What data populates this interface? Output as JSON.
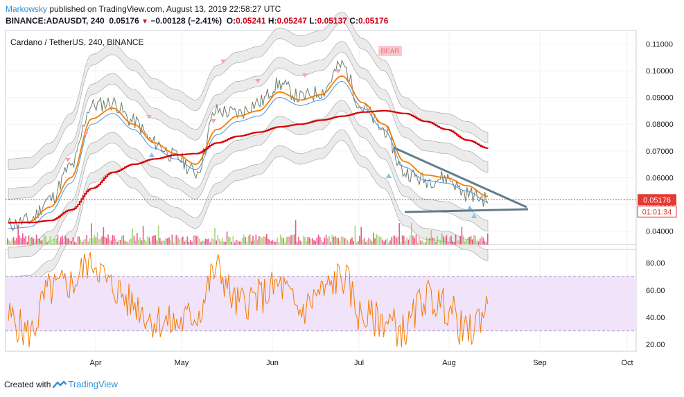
{
  "header": {
    "author": "Markowsky",
    "published_text": " published on TradingView.com, August 13, 2019 22:58:27 UTC",
    "symbol_line": "BINANCE:ADAUSDT, 240",
    "last_price": "0.05176",
    "change": "−0.00128 (−2.41%)",
    "o_label": "O:",
    "o_value": "0.05241",
    "h_label": "H:",
    "h_value": "0.05247",
    "l_label": "L:",
    "l_value": "0.05137",
    "c_label": "C:",
    "c_value": "0.05176",
    "down_arrow": "▼"
  },
  "chart_data": [
    {
      "type": "line",
      "title": "Cardano / TetherUS, 240, BINANCE",
      "price_axis_ticks": [
        "0.11000",
        "0.10000",
        "0.09000",
        "0.08000",
        "0.07000",
        "0.06000",
        "0.05000",
        "0.04000"
      ],
      "x_axis_ticks": [
        "Apr",
        "May",
        "Jun",
        "Jul",
        "Aug",
        "Sep",
        "Oct"
      ],
      "current_price_label": "0.05176",
      "countdown_label": "01:01:34",
      "signal_label": "BEAR",
      "series": [
        {
          "x": [
            "Mar 6",
            "Mar 13",
            "Mar 20",
            "Mar 27",
            "Apr 3",
            "Apr 10",
            "Apr 17",
            "Apr 24",
            "May 1",
            "May 8",
            "May 15",
            "May 22",
            "May 29",
            "Jun 5",
            "Jun 12",
            "Jun 19",
            "Jun 26",
            "Jul 3",
            "Jul 10",
            "Jul 17",
            "Jul 24",
            "Jul 31",
            "Aug 7",
            "Aug 13"
          ],
          "values": [
            0.0425,
            0.044,
            0.052,
            0.064,
            0.087,
            0.088,
            0.081,
            0.073,
            0.068,
            0.062,
            0.085,
            0.084,
            0.088,
            0.095,
            0.09,
            0.092,
            0.102,
            0.086,
            0.078,
            0.062,
            0.059,
            0.06,
            0.054,
            0.0518
          ]
        },
        {
          "values": [
            0.043,
            0.0435,
            0.049,
            0.06,
            0.082,
            0.086,
            0.08,
            0.073,
            0.069,
            0.065,
            0.078,
            0.083,
            0.085,
            0.092,
            0.089,
            0.091,
            0.098,
            0.088,
            0.08,
            0.066,
            0.061,
            0.06,
            0.057,
            0.053
          ]
        },
        {
          "values": [
            0.0432,
            0.0432,
            0.044,
            0.048,
            0.056,
            0.062,
            0.065,
            0.067,
            0.0685,
            0.069,
            0.073,
            0.0755,
            0.077,
            0.079,
            0.08,
            0.0815,
            0.083,
            0.0845,
            0.085,
            0.084,
            0.081,
            0.078,
            0.074,
            0.071
          ]
        }
      ],
      "ylim": [
        0.035,
        0.115
      ]
    },
    {
      "type": "line",
      "y_axis_ticks": [
        "80.00",
        "60.00",
        "40.00",
        "20.00"
      ],
      "band": [
        30,
        70
      ],
      "x": [
        "Mar 6",
        "Mar 13",
        "Mar 20",
        "Mar 27",
        "Apr 3",
        "Apr 10",
        "Apr 17",
        "Apr 24",
        "May 1",
        "May 8",
        "May 15",
        "May 22",
        "May 29",
        "Jun 5",
        "Jun 12",
        "Jun 19",
        "Jun 26",
        "Jul 3",
        "Jul 10",
        "Jul 17",
        "Jul 24",
        "Jul 31",
        "Aug 7",
        "Aug 13"
      ],
      "values": [
        40,
        28,
        60,
        65,
        82,
        62,
        50,
        38,
        35,
        42,
        75,
        50,
        55,
        63,
        45,
        58,
        70,
        40,
        38,
        30,
        55,
        48,
        28,
        47
      ],
      "ylim": [
        15,
        90
      ]
    }
  ],
  "colors": {
    "price": "#6b7c6b",
    "ema": "#f57c00",
    "sma": "#d50000",
    "blue_line": "#4a90d9",
    "band_fill": "#ebebeb",
    "osc": "#f57c00",
    "osc_band": "#f1e3fa",
    "current_price": "#e53935",
    "trend": "#607d8b"
  },
  "footer": {
    "created_with": "Created with",
    "brand": "TradingView"
  }
}
